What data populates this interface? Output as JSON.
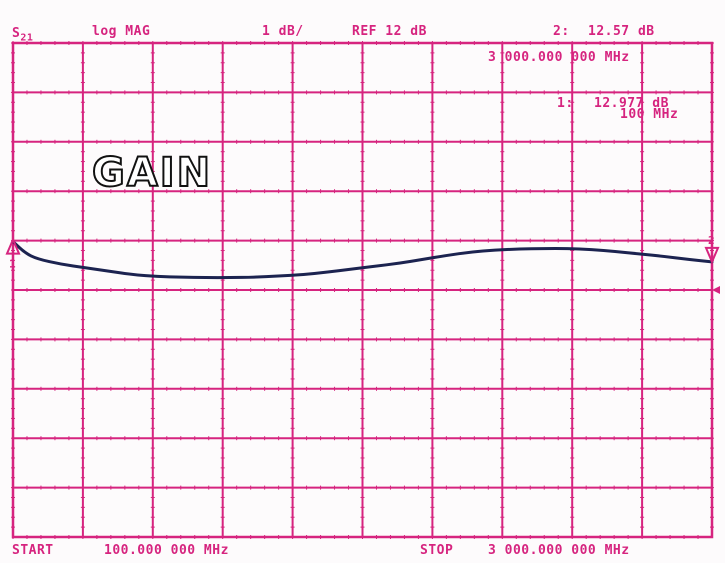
{
  "header": {
    "param": "S",
    "param_sub": "21",
    "format": "log MAG",
    "scale": "1 dB/",
    "ref": "REF 12 dB"
  },
  "markers": {
    "m2_label": "2:",
    "m2_value": "12.57 dB",
    "m2_freq": "3 000.000 000 MHz",
    "m1_label": "1:",
    "m1_value": "12.977 dB",
    "m1_freq": "100 MHz",
    "m1_tag": "1",
    "m2_tag": "2"
  },
  "footer": {
    "start_label": "START",
    "start_value": "100.000 000 MHz",
    "stop_label": "STOP",
    "stop_value": "3 000.000 000 MHz"
  },
  "colors": {
    "grid": "#d6247f",
    "trace": "#1c2350",
    "background": "#fdfbfc"
  },
  "chart_data": {
    "type": "line",
    "title": "GAIN",
    "xlabel": "",
    "ylabel": "",
    "xlim": [
      100,
      3000
    ],
    "ylim": [
      7,
      17
    ],
    "x_unit": "MHz",
    "y_unit": "dB",
    "grid": true,
    "reference_level": 12,
    "series": [
      {
        "x": [
          100,
          150,
          200,
          300,
          400,
          500,
          600,
          700,
          800,
          900,
          1000,
          1100,
          1200,
          1300,
          1400,
          1500,
          1600,
          1700,
          1800,
          1900,
          2000,
          2100,
          2200,
          2300,
          2400,
          2500,
          2600,
          2700,
          2800,
          2900,
          3000
        ],
        "values": [
          12.98,
          12.75,
          12.63,
          12.52,
          12.45,
          12.38,
          12.31,
          12.27,
          12.26,
          12.25,
          12.25,
          12.26,
          12.28,
          12.31,
          12.36,
          12.42,
          12.48,
          12.54,
          12.62,
          12.7,
          12.77,
          12.81,
          12.83,
          12.84,
          12.84,
          12.82,
          12.78,
          12.73,
          12.68,
          12.62,
          12.57
        ]
      }
    ]
  }
}
